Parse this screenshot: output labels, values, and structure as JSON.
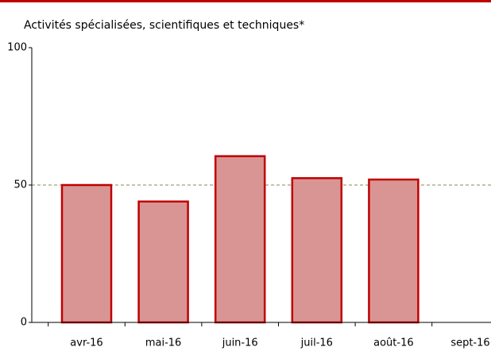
{
  "chart_data": {
    "type": "bar",
    "title": "Activités spécialisées, scientifiques et techniques*",
    "categories": [
      "avr-16",
      "mai-16",
      "juin-16",
      "juil-16",
      "août-16",
      "sept-16"
    ],
    "values": [
      50,
      44,
      60.5,
      52.5,
      52,
      null
    ],
    "color": "#d99594",
    "edge_color": "#c00000",
    "ylim": [
      0,
      100
    ],
    "yticks": [
      0,
      50,
      100
    ],
    "reference_line": 50,
    "reference_color": "#8a8a4a"
  }
}
